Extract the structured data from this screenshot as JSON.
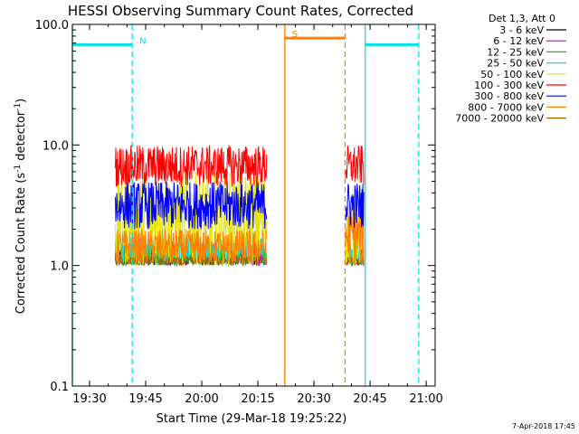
{
  "chart_data": {
    "type": "line",
    "title": "HESSI Observing Summary Count Rates, Corrected",
    "xlabel": "Start Time (29-Mar-18 19:25:22)",
    "ylabel": "Corrected Count Rate (s⁻¹ detector⁻¹)",
    "ylabel_main": "Corrected Count Rate (s",
    "ylabel_sup1": "-1",
    "ylabel_mid": " detector",
    "ylabel_sup2": "-1",
    "ylabel_end": ")",
    "x_range_minutes": [
      0,
      97
    ],
    "x_ticks": [
      {
        "label": "19:30",
        "minute": 4.6
      },
      {
        "label": "19:45",
        "minute": 19.6
      },
      {
        "label": "20:00",
        "minute": 34.6
      },
      {
        "label": "20:15",
        "minute": 49.6
      },
      {
        "label": "20:30",
        "minute": 64.6
      },
      {
        "label": "20:45",
        "minute": 79.6
      },
      {
        "label": "21:00",
        "minute": 94.6
      }
    ],
    "y_scale": "log",
    "ylim": [
      0.1,
      100.0
    ],
    "y_ticks": [
      "0.1",
      "1.0",
      "10.0",
      "100.0"
    ],
    "legend_placement": "outside-right",
    "legend_header": "Det 1,3, Att 0",
    "series": [
      {
        "name": "3 - 6 keV",
        "color": "#000000",
        "segments": [
          {
            "start": 11.5,
            "end": 52.0,
            "low": 1.0,
            "high": 1.4
          },
          {
            "start": 73.0,
            "end": 78.0,
            "low": 1.0,
            "high": 1.3
          }
        ]
      },
      {
        "name": "6 - 12 keV",
        "color": "#cc00cc",
        "segments": [
          {
            "start": 11.5,
            "end": 52.0,
            "low": 1.0,
            "high": 1.6
          },
          {
            "start": 73.0,
            "end": 78.0,
            "low": 1.0,
            "high": 1.4
          }
        ]
      },
      {
        "name": "12 - 25 keV",
        "color": "#00cc00",
        "segments": [
          {
            "start": 11.5,
            "end": 52.0,
            "low": 1.0,
            "high": 1.5
          },
          {
            "start": 73.0,
            "end": 78.0,
            "low": 1.0,
            "high": 1.3
          }
        ]
      },
      {
        "name": "25 - 50 keV",
        "color": "#00e5e5",
        "segments": [
          {
            "start": 11.5,
            "end": 52.0,
            "low": 1.0,
            "high": 1.8
          },
          {
            "start": 73.0,
            "end": 78.0,
            "low": 1.0,
            "high": 1.5
          }
        ]
      },
      {
        "name": "50 - 100 keV",
        "color": "#e5e500",
        "segments": [
          {
            "start": 11.5,
            "end": 52.0,
            "low": 1.0,
            "high": 6.0
          },
          {
            "start": 73.0,
            "end": 78.0,
            "low": 1.0,
            "high": 4.0
          }
        ]
      },
      {
        "name": "100 - 300 keV",
        "color": "#ff0000",
        "segments": [
          {
            "start": 11.5,
            "end": 52.0,
            "low": 4.5,
            "high": 10.0
          },
          {
            "start": 73.0,
            "end": 78.0,
            "low": 4.5,
            "high": 10.0
          }
        ]
      },
      {
        "name": "300 - 800 keV",
        "color": "#0000ff",
        "segments": [
          {
            "start": 11.5,
            "end": 52.0,
            "low": 2.0,
            "high": 5.0
          },
          {
            "start": 73.0,
            "end": 78.0,
            "low": 2.0,
            "high": 5.0
          }
        ]
      },
      {
        "name": "800 - 7000 keV",
        "color": "#ff8000",
        "segments": [
          {
            "start": 11.5,
            "end": 52.0,
            "low": 1.0,
            "high": 2.0
          },
          {
            "start": 73.0,
            "end": 78.0,
            "low": 1.0,
            "high": 3.0
          }
        ]
      },
      {
        "name": "7000 - 20000 keV",
        "color": "#996600",
        "segments": [
          {
            "start": 11.5,
            "end": 52.0,
            "low": 1.0,
            "high": 1.2
          },
          {
            "start": 73.0,
            "end": 78.0,
            "low": 1.0,
            "high": 1.2
          }
        ]
      }
    ],
    "flag_bars": [
      {
        "label": "",
        "color": "#00e5e5",
        "start": 0,
        "end": 16.0,
        "level": 68
      },
      {
        "label": "N",
        "color": "#00e5e5",
        "start": 16.0,
        "end": 16.0,
        "level": 68
      },
      {
        "label": "S",
        "color": "#ff8000",
        "start": 56.8,
        "end": 72.9,
        "level": 77
      },
      {
        "label": "",
        "color": "#00e5e5",
        "start": 78.3,
        "end": 92.6,
        "level": 68
      }
    ],
    "vertical_lines": [
      {
        "minute": 0.0,
        "color": "#00e5e5",
        "style": "solid"
      },
      {
        "minute": 16.0,
        "color": "#00e5e5",
        "style": "dashed"
      },
      {
        "minute": 56.8,
        "color": "#ff8000",
        "style": "solid"
      },
      {
        "minute": 72.9,
        "color": "#ff8000",
        "style": "dashed"
      },
      {
        "minute": 78.3,
        "color": "#00e5e5",
        "style": "solid"
      },
      {
        "minute": 92.6,
        "color": "#00e5e5",
        "style": "dashed"
      }
    ]
  },
  "footer_date": "7-Apr-2018 17:45"
}
